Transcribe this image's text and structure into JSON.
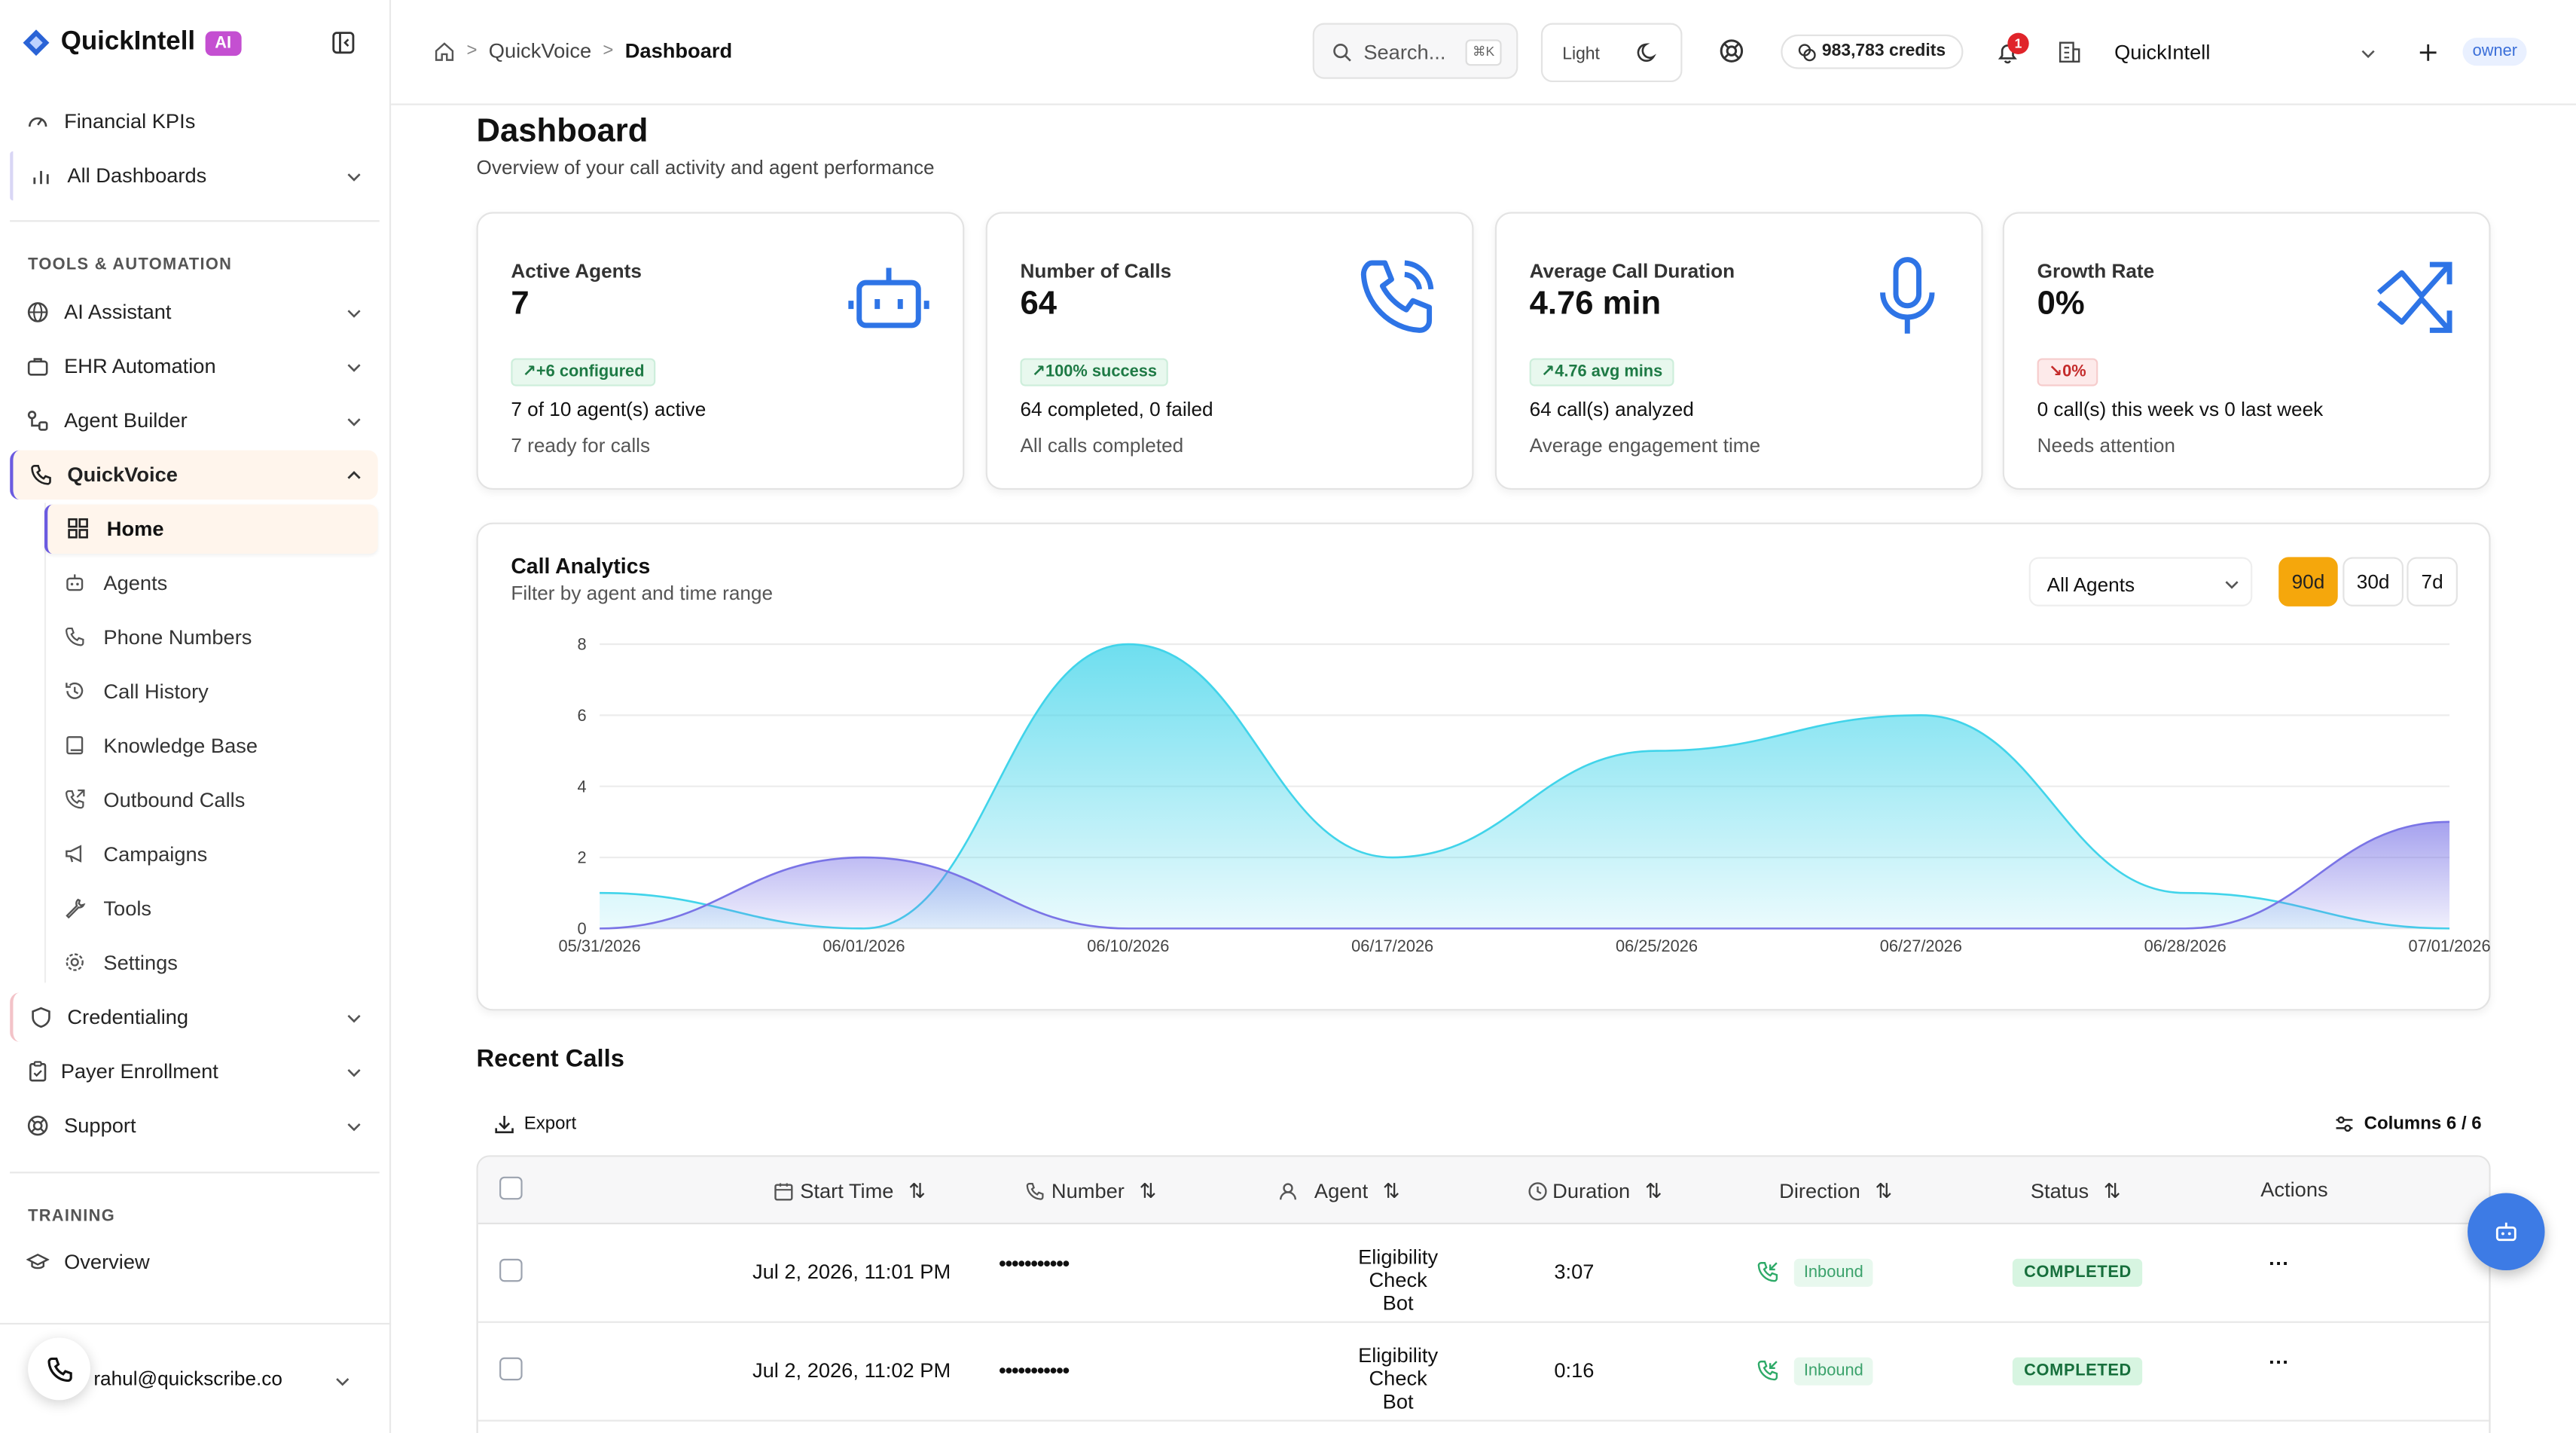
{
  "app": {
    "name": "QuickIntell",
    "ai_badge": "AI"
  },
  "sidebar": {
    "top_items": [
      {
        "label": "Financial KPIs",
        "icon": "gauge-icon"
      },
      {
        "label": "All Dashboards",
        "icon": "bar-chart-icon"
      }
    ],
    "section_tools": "TOOLS & AUTOMATION",
    "tools_items": [
      {
        "label": "AI Assistant",
        "icon": "globe-icon"
      },
      {
        "label": "EHR Automation",
        "icon": "briefcase-icon"
      },
      {
        "label": "Agent Builder",
        "icon": "workflow-icon"
      },
      {
        "label": "QuickVoice",
        "icon": "phone-icon"
      }
    ],
    "quickvoice_sub": [
      {
        "label": "Home",
        "icon": "grid-icon"
      },
      {
        "label": "Agents",
        "icon": "bot-icon"
      },
      {
        "label": "Phone Numbers",
        "icon": "phone-icon"
      },
      {
        "label": "Call History",
        "icon": "history-icon"
      },
      {
        "label": "Knowledge Base",
        "icon": "book-icon"
      },
      {
        "label": "Outbound Calls",
        "icon": "phone-outgoing-icon"
      },
      {
        "label": "Campaigns",
        "icon": "megaphone-icon"
      },
      {
        "label": "Tools",
        "icon": "wrench-icon"
      },
      {
        "label": "Settings",
        "icon": "gear-icon"
      }
    ],
    "bottom_items": [
      {
        "label": "Credentialing",
        "icon": "shield-icon"
      },
      {
        "label": "Payer Enrollment",
        "icon": "clipboard-icon"
      },
      {
        "label": "Support",
        "icon": "lifebuoy-icon"
      }
    ],
    "section_training": "TRAINING",
    "training_items": [
      {
        "label": "Overview",
        "icon": "graduation-cap-icon"
      }
    ],
    "user_email": "rahul@quickscribe.co"
  },
  "header": {
    "breadcrumb": [
      "QuickVoice",
      "Dashboard"
    ],
    "search_placeholder": "Search...",
    "search_shortcut": "⌘K",
    "theme_label": "Light",
    "credits": "983,783 credits",
    "notification_count": "1",
    "org_name": "QuickIntell",
    "role": "owner"
  },
  "page": {
    "title": "Dashboard",
    "subtitle": "Overview of your call activity and agent performance"
  },
  "kpis": [
    {
      "title": "Active Agents",
      "value": "7",
      "pill": "+6 configured",
      "pill_tone": "green",
      "line1": "7 of 10 agent(s) active",
      "line2": "7 ready for calls",
      "icon": "bot-icon"
    },
    {
      "title": "Number of Calls",
      "value": "64",
      "pill": "100% success",
      "pill_tone": "green",
      "line1": "64 completed, 0 failed",
      "line2": "All calls completed",
      "icon": "phone-call-icon"
    },
    {
      "title": "Average Call Duration",
      "value": "4.76 min",
      "pill": "4.76 avg mins",
      "pill_tone": "green",
      "line1": "64 call(s) analyzed",
      "line2": "Average engagement time",
      "icon": "microphone-icon"
    },
    {
      "title": "Growth Rate",
      "value": "0%",
      "pill": "0%",
      "pill_tone": "red",
      "line1": "0 call(s) this week vs 0 last week",
      "line2": "Needs attention",
      "icon": "trending-up-icon"
    }
  ],
  "analytics": {
    "title": "Call Analytics",
    "subtitle": "Filter by agent and time range",
    "agent_filter": "All Agents",
    "ranges": [
      "90d",
      "30d",
      "7d"
    ],
    "selected_range": "90d"
  },
  "chart_data": {
    "type": "area",
    "categories": [
      "05/31/2026",
      "06/01/2026",
      "06/10/2026",
      "06/17/2026",
      "06/25/2026",
      "06/27/2026",
      "06/28/2026",
      "07/01/2026"
    ],
    "series": [
      {
        "values": [
          1,
          0,
          8,
          2,
          5,
          6,
          1,
          0
        ],
        "color": "#41d4ea"
      },
      {
        "values": [
          0,
          2,
          0,
          0,
          0,
          0,
          0,
          3
        ],
        "color": "#7a74e6"
      }
    ],
    "yticks": [
      0,
      2,
      4,
      6,
      8
    ],
    "ylim": [
      0,
      8
    ],
    "grid": true
  },
  "recent": {
    "title": "Recent Calls",
    "export_label": "Export",
    "columns_label": "Columns 6 / 6",
    "headers": [
      "Start Time",
      "Number",
      "Agent",
      "Duration",
      "Direction",
      "Status",
      "Actions"
    ],
    "rows": [
      {
        "start": "Jul 2, 2026, 11:01 PM",
        "number": "•••••••••••",
        "agent_line1": "Eligibility",
        "agent_line2": "Check Bot",
        "duration": "3:07",
        "direction": "Inbound",
        "status": "COMPLETED",
        "actions": "···"
      },
      {
        "start": "Jul 2, 2026, 11:02 PM",
        "number": "•••••••••••",
        "agent_line1": "Eligibility",
        "agent_line2": "Check Bot",
        "duration": "0:16",
        "direction": "Inbound",
        "status": "COMPLETED",
        "actions": "···"
      }
    ]
  },
  "colors": {
    "accent": "#3d7be5",
    "brand": "#c44fd1",
    "range_selected": "#f5a70c",
    "active_nav": "#fff5ec"
  }
}
